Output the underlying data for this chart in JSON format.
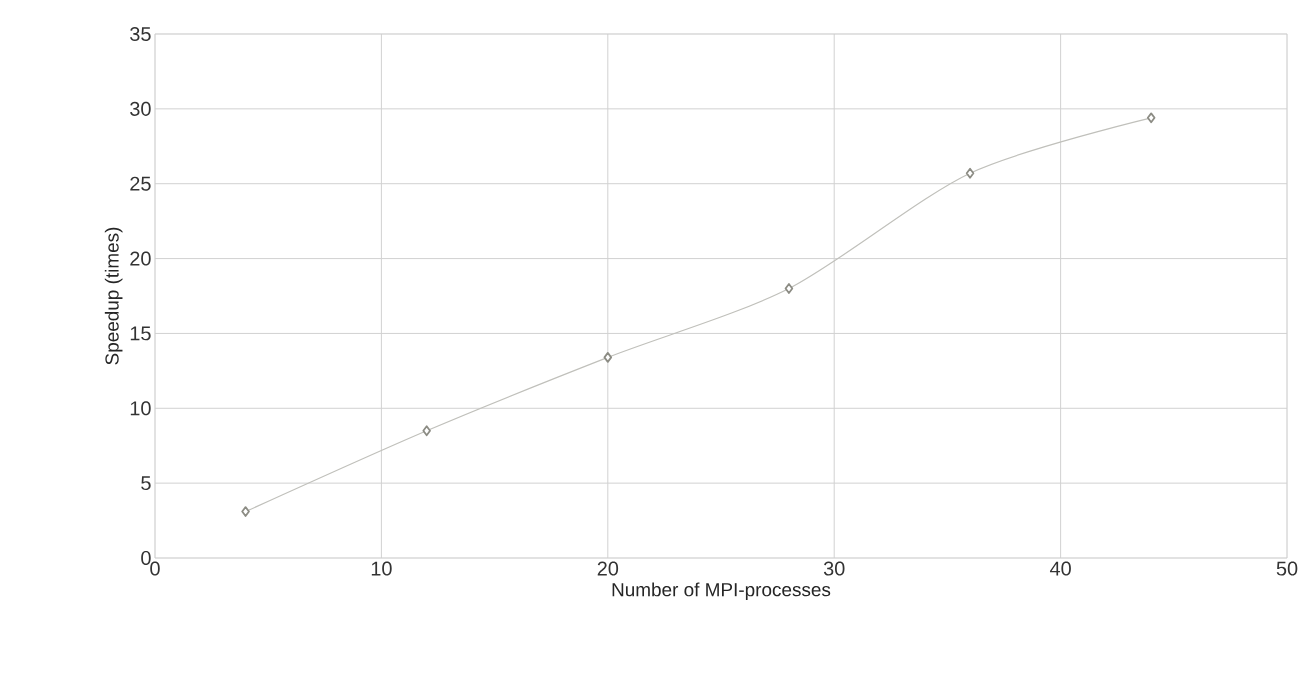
{
  "chart_data": {
    "type": "line",
    "xlabel": "Number of MPI-processes",
    "ylabel": "Speedup (times)",
    "x": [
      4,
      12,
      20,
      28,
      36,
      44
    ],
    "series": [
      {
        "color": "#8c8c84",
        "values": [
          3.1,
          8.5,
          13.4,
          18.0,
          25.7,
          29.4
        ]
      }
    ],
    "xlim": [
      0,
      50
    ],
    "ylim": [
      0,
      35
    ],
    "xticks": [
      0,
      10,
      20,
      30,
      40,
      50
    ],
    "yticks": [
      0,
      5,
      10,
      15,
      20,
      25,
      30,
      35
    ],
    "grid": true,
    "marker": "diamond",
    "line_style": "solid"
  }
}
